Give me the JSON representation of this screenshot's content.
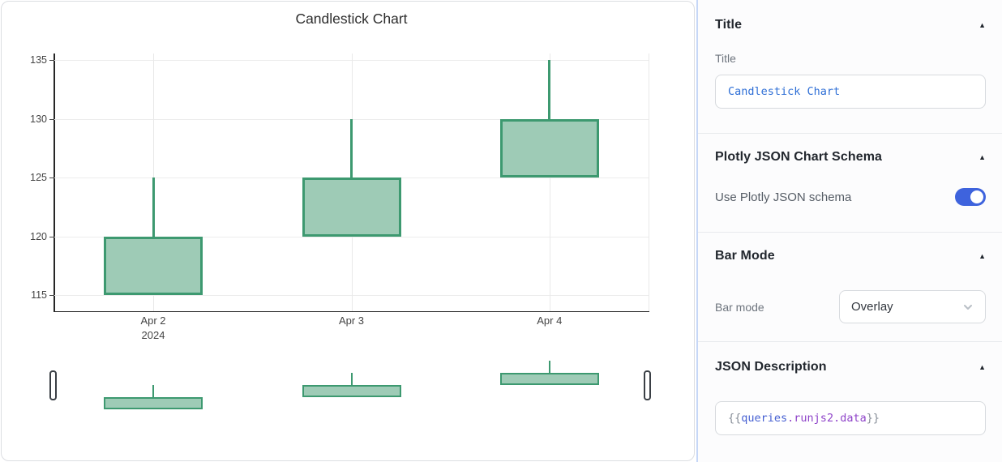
{
  "colors": {
    "accent": "#3E63DD",
    "candle-line": "#3D9970",
    "candle-fill": "#9ECBB6",
    "code-blue": "#2F6FD6",
    "code-blue2": "#4660D2",
    "code-purple": "#8F44C9",
    "code-gray": "#878E98"
  },
  "chart": {
    "title": "Candlestick Chart",
    "y_ticks": [
      135,
      130,
      125,
      120,
      115
    ],
    "x_tick_labels": [
      "Apr 2",
      "Apr 3",
      "Apr 4"
    ],
    "x_year_label": "2024"
  },
  "chart_data": {
    "type": "candlestick",
    "x": [
      "Apr 2 2024",
      "Apr 3 2024",
      "Apr 4 2024"
    ],
    "open": [
      115,
      120,
      125
    ],
    "high": [
      125,
      130,
      135
    ],
    "low": [
      115,
      120,
      125
    ],
    "close": [
      120,
      125,
      130
    ],
    "title": "Candlestick Chart",
    "ylim": [
      113.5,
      135.6
    ],
    "increasing_line_color": "#3D9970",
    "grid": true,
    "rangeslider": true
  },
  "inspector": {
    "collapse_icon": "▲",
    "sections": {
      "title": {
        "header": "Title",
        "field_label": "Title",
        "field_value": "Candlestick Chart"
      },
      "schema": {
        "header": "Plotly JSON Chart Schema",
        "toggle_label": "Use Plotly JSON schema",
        "toggle_on": true
      },
      "bar_mode": {
        "header": "Bar Mode",
        "field_label": "Bar mode",
        "selected": "Overlay"
      },
      "json": {
        "header": "JSON Description",
        "tokens": [
          {
            "t": "{{",
            "c": "gray"
          },
          {
            "t": "queries",
            "c": "blue"
          },
          {
            "t": ".runjs2.data",
            "c": "purple"
          },
          {
            "t": "}}",
            "c": "gray"
          }
        ]
      }
    }
  }
}
